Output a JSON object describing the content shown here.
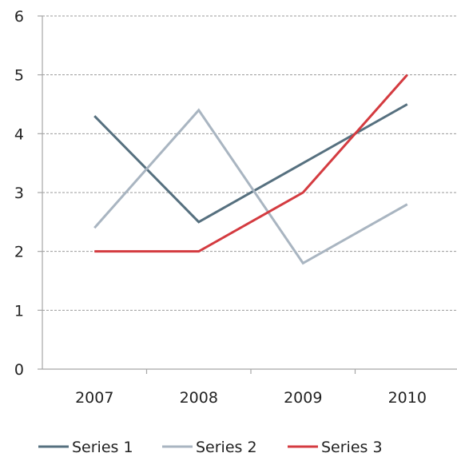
{
  "chart_data": {
    "type": "line",
    "title": "",
    "xlabel": "",
    "ylabel": "",
    "categories": [
      "2007",
      "2008",
      "2009",
      "2010"
    ],
    "ylim": [
      0,
      6
    ],
    "yticks": [
      0,
      1,
      2,
      3,
      4,
      5,
      6
    ],
    "grid": true,
    "legend_position": "bottom",
    "series": [
      {
        "name": "Series 1",
        "values": [
          4.3,
          2.5,
          3.5,
          4.5
        ],
        "color": "#56707f"
      },
      {
        "name": "Series 2",
        "values": [
          2.4,
          4.4,
          1.8,
          2.8
        ],
        "color": "#a9b5c1"
      },
      {
        "name": "Series 3",
        "values": [
          2.0,
          2.0,
          3.0,
          5.0
        ],
        "color": "#d43b40"
      }
    ]
  }
}
